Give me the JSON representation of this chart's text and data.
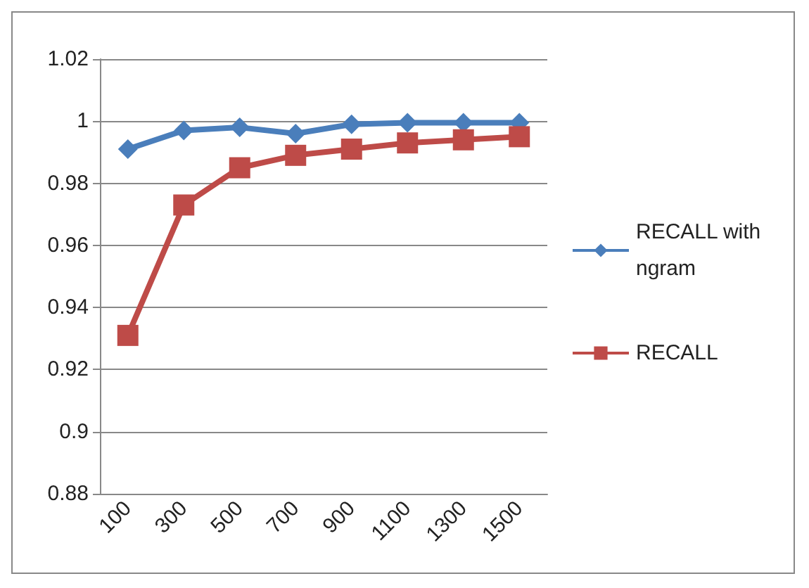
{
  "chart_data": {
    "type": "line",
    "categories": [
      "100",
      "300",
      "500",
      "700",
      "900",
      "1100",
      "1300",
      "1500"
    ],
    "series": [
      {
        "name": "RECALL with ngram",
        "color": "#4a7ebb",
        "marker": "diamond",
        "values": [
          0.991,
          0.997,
          0.998,
          0.996,
          0.999,
          0.9995,
          0.9995,
          0.9995
        ]
      },
      {
        "name": "RECALL",
        "color": "#be4b48",
        "marker": "square",
        "values": [
          0.931,
          0.973,
          0.985,
          0.989,
          0.991,
          0.993,
          0.994,
          0.995
        ]
      }
    ],
    "ylim": [
      0.88,
      1.02
    ],
    "yticks": [
      0.88,
      0.9,
      0.92,
      0.94,
      0.96,
      0.98,
      1,
      1.02
    ],
    "grid": "y",
    "legend": "right",
    "line_style": "solid"
  }
}
